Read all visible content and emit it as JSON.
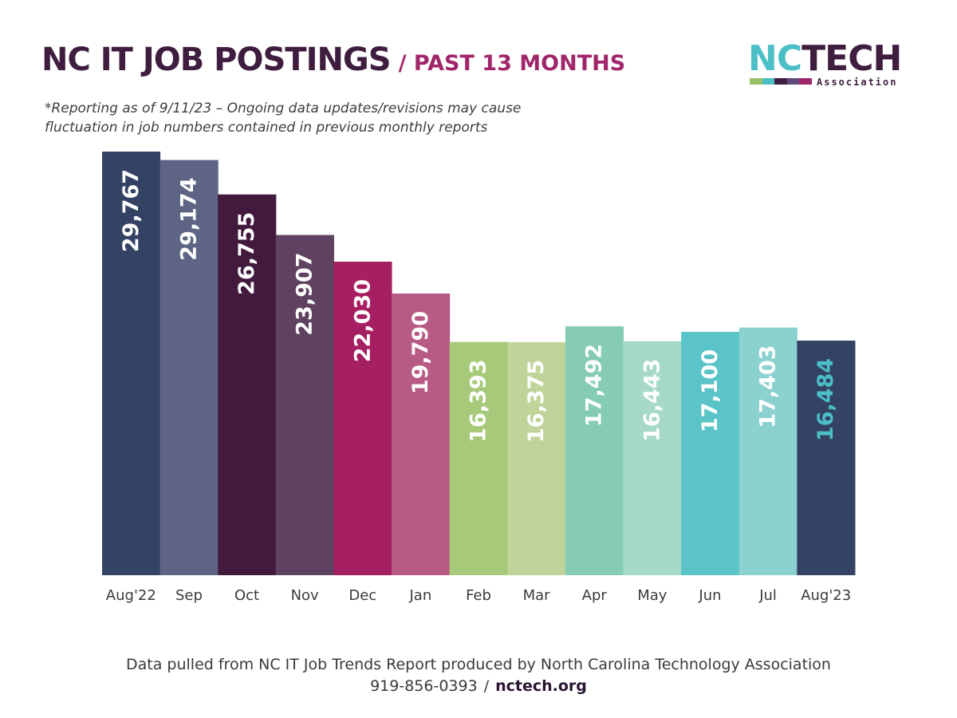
{
  "header": {
    "title": "NC IT JOB POSTINGS",
    "title_suffix": "/ PAST 13 MONTHS",
    "note_line1": "*Reporting as of 9/11/23 – Ongoing data updates/revisions may cause",
    "note_line2": "fluctuation in job numbers contained in previous monthly reports"
  },
  "logo": {
    "nc": "NC",
    "tech": "TECH",
    "association": "Association",
    "stripe_colors": [
      "#9bc066",
      "#4bbfc6",
      "#3f1d3f",
      "#5e4a7a",
      "#a0256a"
    ]
  },
  "chart_data": {
    "type": "bar",
    "categories": [
      "Aug'22",
      "Sep",
      "Oct",
      "Nov",
      "Dec",
      "Jan",
      "Feb",
      "Mar",
      "Apr",
      "May",
      "Jun",
      "Jul",
      "Aug'23"
    ],
    "values": [
      29767,
      29174,
      26755,
      23907,
      22030,
      19790,
      16393,
      16375,
      17492,
      16443,
      17100,
      17403,
      16484
    ],
    "value_labels": [
      "29,767",
      "29,174",
      "26,755",
      "23,907",
      "22,030",
      "19,790",
      "16,393",
      "16,375",
      "17,492",
      "16,443",
      "17,100",
      "17,403",
      "16,484"
    ],
    "bar_colors": [
      "#344264",
      "#5e6584",
      "#421a3e",
      "#5e4260",
      "#a61f62",
      "#b75b85",
      "#a7ca7a",
      "#c0d49a",
      "#86ccb3",
      "#a7d9c9",
      "#5ac4c8",
      "#8ad1d0",
      "#344264"
    ],
    "label_colors": [
      "#ffffff",
      "#ffffff",
      "#ffffff",
      "#ffffff",
      "#ffffff",
      "#ffffff",
      "#ffffff",
      "#ffffff",
      "#ffffff",
      "#ffffff",
      "#ffffff",
      "#ffffff",
      "#4bbfc6"
    ],
    "ylim": [
      0,
      29767
    ],
    "xlabel": "",
    "ylabel": "",
    "grid": false
  },
  "footer": {
    "source": "Data pulled from NC IT Job Trends Report produced by North Carolina Technology Association",
    "phone": "919-856-0393",
    "separator": "/",
    "website": "nctech.org"
  }
}
